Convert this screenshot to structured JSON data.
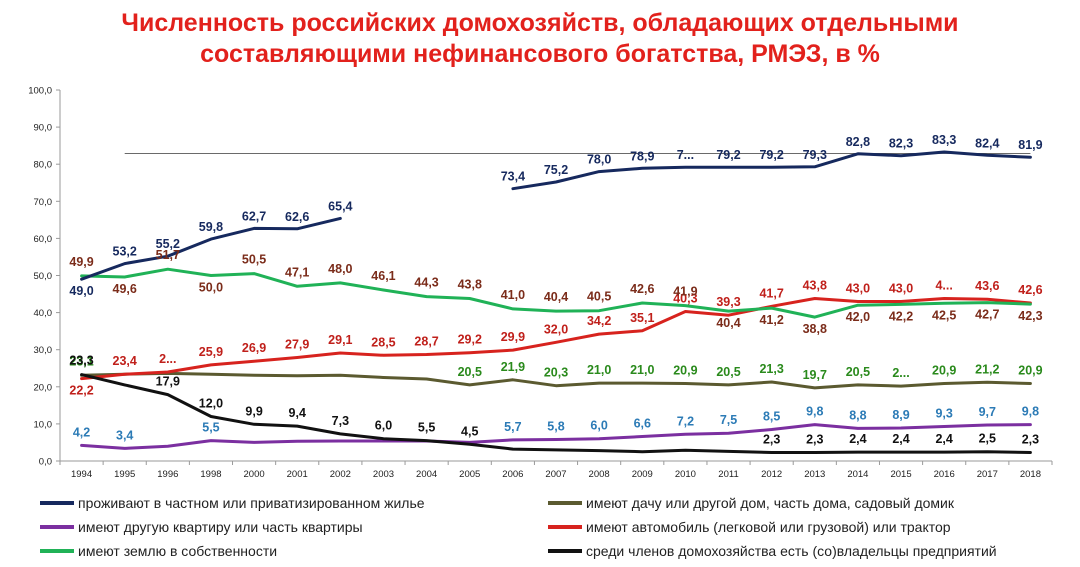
{
  "title_line1": "Численность российских домохозяйств, обладающих отдельными",
  "title_line2": "составляющими нефинансового богатства, РМЭЗ, в %",
  "chart_data": {
    "type": "line",
    "x": [
      "1994",
      "1995",
      "1996",
      "1998",
      "2000",
      "2001",
      "2002",
      "2003",
      "2004",
      "2005",
      "2006",
      "2007",
      "2008",
      "2009",
      "2010",
      "2011",
      "2012",
      "2013",
      "2014",
      "2015",
      "2016",
      "2017",
      "2018"
    ],
    "yticks": [
      "0,0",
      "10,0",
      "20,0",
      "30,0",
      "40,0",
      "50,0",
      "60,0",
      "70,0",
      "80,0",
      "90,0",
      "100,0"
    ],
    "ylim": [
      0,
      100
    ],
    "legend_position": "bottom",
    "series": [
      {
        "name": "проживают в частном или приватизированном жилье",
        "color": "#16295e",
        "values": [
          49.0,
          53.2,
          55.2,
          59.8,
          62.7,
          62.6,
          65.4,
          null,
          null,
          null,
          73.4,
          75.2,
          78.0,
          78.9,
          79.2,
          79.2,
          79.2,
          79.3,
          82.8,
          82.3,
          83.3,
          82.4,
          81.9
        ],
        "labels": [
          "49,0",
          "53,2",
          "55,2",
          "59,8",
          "62,7",
          "62,6",
          "65,4",
          "",
          "",
          "",
          "73,4",
          "75,2",
          "78,0",
          "78,9",
          "7...",
          "79,2",
          "79,2",
          "79,3",
          "82,8",
          "82,3",
          "83,3",
          "82,4",
          "81,9"
        ]
      },
      {
        "name": "имеют дачу или другой дом, часть дома, садовый домик",
        "color": "#5b5a30",
        "values": [
          23.1,
          23.4,
          23.6,
          23.4,
          23.1,
          23.0,
          23.1,
          22.5,
          22.1,
          20.5,
          21.9,
          20.3,
          21.0,
          21.0,
          20.9,
          20.5,
          21.3,
          19.7,
          20.5,
          20.2,
          20.9,
          21.2,
          20.9
        ],
        "labels": [
          "23,1",
          "",
          "",
          "",
          "",
          "",
          "",
          "",
          "",
          "20,5",
          "21,9",
          "20,3",
          "21,0",
          "21,0",
          "20,9",
          "20,5",
          "21,3",
          "19,7",
          "20,5",
          "2...",
          "20,9",
          "21,2",
          "20,9"
        ]
      },
      {
        "name": "имеют другую квартиру или часть квартиры",
        "color": "#7b2fa0",
        "values": [
          4.2,
          3.4,
          4.0,
          5.5,
          5.0,
          5.3,
          5.4,
          5.4,
          5.4,
          5.0,
          5.7,
          5.8,
          6.0,
          6.6,
          7.2,
          7.5,
          8.5,
          9.8,
          8.8,
          8.9,
          9.3,
          9.7,
          9.8
        ],
        "labels": [
          "4,2",
          "3,4",
          "",
          "5,5",
          "",
          "",
          "",
          "",
          "",
          "",
          "5,7",
          "5,8",
          "6,0",
          "6,6",
          "7,2",
          "7,5",
          "8,5",
          "9,8",
          "8,8",
          "8,9",
          "9,3",
          "9,7",
          "9,8"
        ]
      },
      {
        "name": "имеют автомобиль (легковой или грузовой) или трактор",
        "color": "#d7231e",
        "values": [
          22.2,
          23.4,
          24.0,
          25.9,
          26.9,
          27.9,
          29.1,
          28.5,
          28.7,
          29.2,
          29.9,
          32.0,
          34.2,
          35.1,
          40.3,
          39.3,
          41.7,
          43.8,
          43.0,
          43.0,
          43.8,
          43.6,
          42.6
        ],
        "labels": [
          "22,2",
          "23,4",
          "2...",
          "25,9",
          "26,9",
          "27,9",
          "29,1",
          "28,5",
          "28,7",
          "29,2",
          "29,9",
          "32,0",
          "34,2",
          "35,1",
          "40,3",
          "39,3",
          "41,7",
          "43,8",
          "43,0",
          "43,0",
          "4...",
          "43,6",
          "42,6"
        ]
      },
      {
        "name": "имеют землю в собственности",
        "color": "#20b257",
        "values": [
          49.9,
          49.6,
          51.7,
          50.0,
          50.5,
          47.1,
          48.0,
          46.1,
          44.3,
          43.8,
          41.0,
          40.4,
          40.5,
          42.6,
          41.9,
          40.4,
          41.2,
          38.8,
          42.0,
          42.2,
          42.5,
          42.7,
          42.3
        ],
        "labels": [
          "49,9",
          "49,6",
          "51,7",
          "50,0",
          "50,5",
          "47,1",
          "48,0",
          "46,1",
          "44,3",
          "43,8",
          "41,0",
          "40,4",
          "40,5",
          "42,6",
          "41,9",
          "40,4",
          "41,2",
          "38,8",
          "42,0",
          "42,2",
          "42,5",
          "42,7",
          "42,3"
        ]
      },
      {
        "name": "среди членов домохозяйства есть (со)владельцы предприятий",
        "color": "#111111",
        "values": [
          23.3,
          20.5,
          17.9,
          12.0,
          9.9,
          9.4,
          7.3,
          6.0,
          5.5,
          4.5,
          3.2,
          3.0,
          2.8,
          2.5,
          2.9,
          2.6,
          2.3,
          2.3,
          2.4,
          2.4,
          2.4,
          2.5,
          2.3
        ],
        "labels": [
          "23,3",
          "",
          "17,9",
          "12,0",
          "9,9",
          "9,4",
          "7,3",
          "6,0",
          "5,5",
          "4,5",
          "",
          "",
          "",
          "",
          "",
          "",
          "2,3",
          "2,3",
          "2,4",
          "2,4",
          "2,4",
          "2,5",
          "2,3"
        ]
      }
    ]
  }
}
